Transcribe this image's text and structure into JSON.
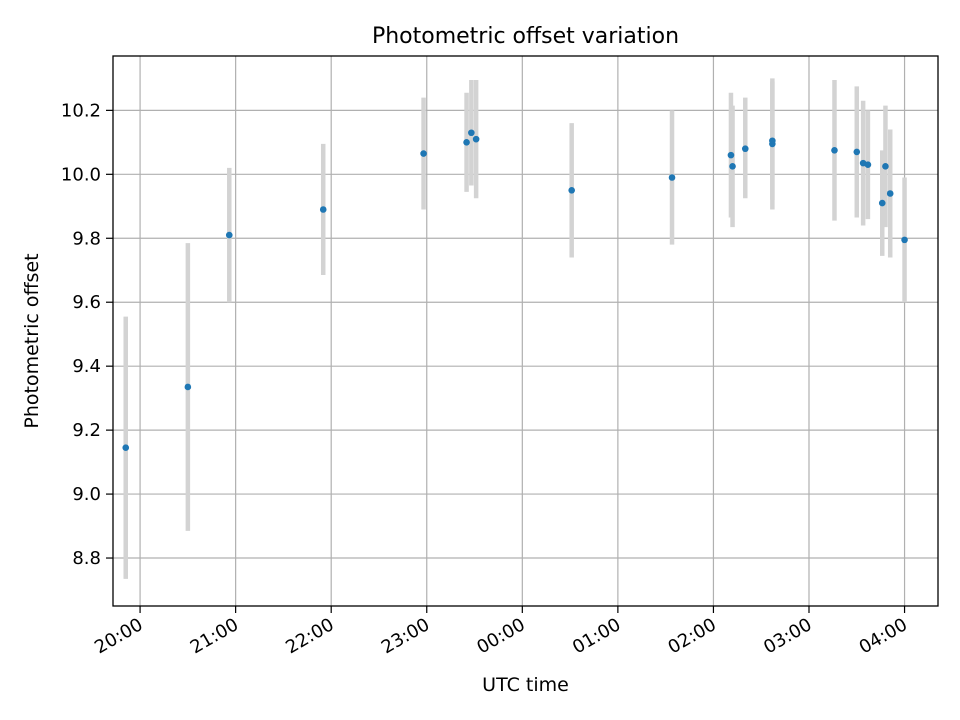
{
  "chart_data": {
    "type": "scatter",
    "title": "Photometric offset variation",
    "xlabel": "UTC time",
    "ylabel": "Photometric offset",
    "x_is_time": true,
    "x_reference_date_note": "times after midnight belong to the following day",
    "xlim": [
      "19:43",
      "04:21"
    ],
    "ylim": [
      8.65,
      10.37
    ],
    "x_ticks": [
      "20:00",
      "21:00",
      "22:00",
      "23:00",
      "00:00",
      "01:00",
      "02:00",
      "03:00",
      "04:00"
    ],
    "y_ticks": [
      "8.8",
      "9.0",
      "9.2",
      "9.4",
      "9.6",
      "9.8",
      "10.0",
      "10.2"
    ],
    "y_tick_values": [
      8.8,
      9.0,
      9.2,
      9.4,
      9.6,
      9.8,
      10.0,
      10.2
    ],
    "grid": true,
    "colors": {
      "points": "#1f77b4",
      "errorbars": "#d3d3d3",
      "grid": "#b0b0b0"
    },
    "points": [
      {
        "x": "19:51",
        "y": 9.145,
        "low": 8.735,
        "high": 9.555
      },
      {
        "x": "20:30",
        "y": 9.335,
        "low": 8.885,
        "high": 9.785
      },
      {
        "x": "20:56",
        "y": 9.81,
        "low": 9.6,
        "high": 10.02
      },
      {
        "x": "21:55",
        "y": 9.89,
        "low": 9.685,
        "high": 10.095
      },
      {
        "x": "22:58",
        "y": 10.065,
        "low": 9.89,
        "high": 10.24
      },
      {
        "x": "23:25",
        "y": 10.1,
        "low": 9.945,
        "high": 10.255
      },
      {
        "x": "23:28",
        "y": 10.13,
        "low": 9.965,
        "high": 10.295
      },
      {
        "x": "23:31",
        "y": 10.11,
        "low": 9.925,
        "high": 10.295
      },
      {
        "x": "00:31",
        "y": 9.95,
        "low": 9.74,
        "high": 10.16
      },
      {
        "x": "01:34",
        "y": 9.99,
        "low": 9.78,
        "high": 10.2
      },
      {
        "x": "02:11",
        "y": 10.06,
        "low": 9.865,
        "high": 10.255
      },
      {
        "x": "02:12",
        "y": 10.025,
        "low": 9.835,
        "high": 10.215
      },
      {
        "x": "02:20",
        "y": 10.08,
        "low": 9.925,
        "high": 10.24
      },
      {
        "x": "02:37",
        "y": 10.095,
        "low": 9.89,
        "high": 10.3
      },
      {
        "x": "02:37",
        "y": 10.105,
        "low": 9.92,
        "high": 10.29
      },
      {
        "x": "03:16",
        "y": 10.075,
        "low": 9.855,
        "high": 10.295
      },
      {
        "x": "03:30",
        "y": 10.07,
        "low": 9.865,
        "high": 10.275
      },
      {
        "x": "03:34",
        "y": 10.035,
        "low": 9.84,
        "high": 10.23
      },
      {
        "x": "03:37",
        "y": 10.03,
        "low": 9.86,
        "high": 10.2
      },
      {
        "x": "03:46",
        "y": 9.91,
        "low": 9.745,
        "high": 10.075
      },
      {
        "x": "03:48",
        "y": 10.025,
        "low": 9.835,
        "high": 10.215
      },
      {
        "x": "03:51",
        "y": 9.94,
        "low": 9.74,
        "high": 10.14
      },
      {
        "x": "04:00",
        "y": 9.795,
        "low": 9.6,
        "high": 9.99
      }
    ]
  }
}
